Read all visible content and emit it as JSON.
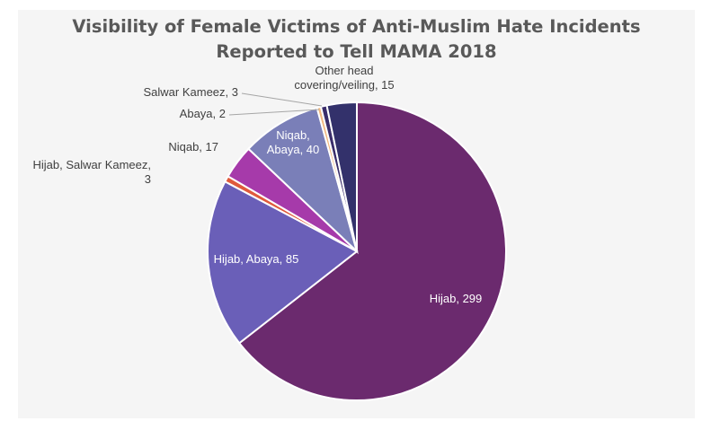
{
  "chart_data": {
    "type": "pie",
    "title_line1": "Visibility of Female Victims of Anti-Muslim Hate Incidents",
    "title_line2": "Reported to Tell MAMA 2018",
    "slices": [
      {
        "category": "Hijab",
        "value": 299,
        "label_lines": [
          "Hijab, 299"
        ],
        "color": "#6b2a6e"
      },
      {
        "category": "Hijab, Abaya",
        "value": 85,
        "label_lines": [
          "Hijab, Abaya, 85"
        ],
        "color": "#6a5fb8"
      },
      {
        "category": "Hijab, Salwar Kameez",
        "value": 3,
        "label_lines": [
          "Hijab, Salwar Kameez,",
          "3"
        ],
        "color": "#e05a3c"
      },
      {
        "category": "Niqab",
        "value": 17,
        "label_lines": [
          "Niqab, 17"
        ],
        "color": "#a63aaa"
      },
      {
        "category": "Niqab, Abaya",
        "value": 40,
        "label_lines": [
          "Niqab,",
          "Abaya, 40"
        ],
        "color": "#7a7fb8"
      },
      {
        "category": "Abaya",
        "value": 2,
        "label_lines": [
          "Abaya, 2"
        ],
        "color": "#f2b880"
      },
      {
        "category": "Salwar Kameez",
        "value": 3,
        "label_lines": [
          "Salwar Kameez, 3"
        ],
        "color": "#3a2d6a"
      },
      {
        "category": "Other head covering/veiling",
        "value": 15,
        "label_lines": [
          "Other head",
          "covering/veiling, 15"
        ],
        "color": "#33316b"
      }
    ],
    "total": 464
  }
}
